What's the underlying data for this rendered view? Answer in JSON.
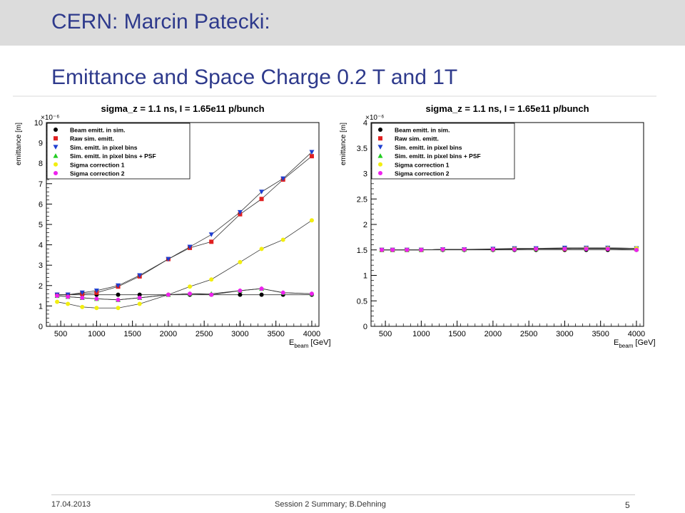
{
  "slide": {
    "title": "CERN: Marcin Patecki:",
    "subtitle": "Emittance and Space Charge 0.2 T and 1T",
    "footer_date": "17.04.2013",
    "footer_center": "Session 2 Summary; B.Dehning",
    "page_number": "5"
  },
  "chart_data": [
    {
      "type": "scatter",
      "title": "sigma_z = 1.1 ns, I = 1.65e11 p/bunch",
      "ylabel": "emittance [m]",
      "xlabel_main": "E",
      "xlabel_sub": "beam",
      "xlabel_unit": "[GeV]",
      "y_exponent": "×10⁻⁶",
      "xlim": [
        300,
        4100
      ],
      "ylim": [
        0,
        10
      ],
      "xticks": [
        500,
        1000,
        1500,
        2000,
        2500,
        3000,
        3500,
        4000
      ],
      "yticks": [
        0,
        1,
        2,
        3,
        4,
        5,
        6,
        7,
        8,
        9,
        10
      ],
      "ytick_labels": [
        "0",
        "1",
        "2",
        "3",
        "4",
        "5",
        "6",
        "7",
        "8",
        "9",
        "10"
      ],
      "x": [
        450,
        600,
        800,
        1000,
        1300,
        1600,
        2000,
        2300,
        2600,
        3000,
        3300,
        3600,
        4000
      ],
      "legend_position": "top-left",
      "series": [
        {
          "name": "Beam emitt. in sim.",
          "color": "#000000",
          "marker": "circle",
          "values": [
            1.55,
            1.55,
            1.55,
            1.55,
            1.55,
            1.55,
            1.55,
            1.55,
            1.55,
            1.55,
            1.55,
            1.55,
            1.55
          ]
        },
        {
          "name": "Raw sim. emitt.",
          "color": "#e02020",
          "marker": "square",
          "values": [
            1.55,
            1.55,
            1.6,
            1.65,
            1.95,
            2.45,
            3.3,
            3.85,
            4.15,
            5.5,
            6.25,
            7.2,
            8.35
          ]
        },
        {
          "name": "Sim. emitt. in pixel bins",
          "color": "#1f3fd0",
          "marker": "triangle-down",
          "values": [
            1.55,
            1.55,
            1.65,
            1.75,
            2.0,
            2.5,
            3.3,
            3.9,
            4.5,
            5.6,
            6.6,
            7.25,
            8.55
          ]
        },
        {
          "name": "Sim. emitt. in pixel bins + PSF",
          "color": "#22cc22",
          "marker": "triangle-up",
          "values": [
            1.5,
            1.45,
            1.4,
            1.35,
            1.3,
            1.4,
            1.55,
            1.6,
            1.6,
            1.75,
            1.85,
            1.65,
            1.6
          ]
        },
        {
          "name": "Sigma correction 1",
          "color": "#f2ee10",
          "marker": "circle",
          "values": [
            1.2,
            1.1,
            0.95,
            0.9,
            0.9,
            1.1,
            1.55,
            1.95,
            2.3,
            3.15,
            3.8,
            4.25,
            5.2
          ]
        },
        {
          "name": "Sigma correction 2",
          "color": "#ee22ee",
          "marker": "circle",
          "values": [
            1.5,
            1.45,
            1.4,
            1.35,
            1.3,
            1.4,
            1.55,
            1.6,
            1.55,
            1.75,
            1.85,
            1.65,
            1.6
          ]
        }
      ]
    },
    {
      "type": "scatter",
      "title": "sigma_z = 1.1 ns, I = 1.65e11 p/bunch",
      "ylabel": "emittance [m]",
      "xlabel_main": "E",
      "xlabel_sub": "beam",
      "xlabel_unit": "[GeV]",
      "y_exponent": "×10⁻⁶",
      "xlim": [
        300,
        4100
      ],
      "ylim": [
        0,
        4
      ],
      "xticks": [
        500,
        1000,
        1500,
        2000,
        2500,
        3000,
        3500,
        4000
      ],
      "yticks": [
        0,
        0.5,
        1,
        1.5,
        2,
        2.5,
        3,
        3.5,
        4
      ],
      "ytick_labels": [
        "0",
        "0.5",
        "1",
        "1.5",
        "2",
        "2.5",
        "3",
        "3.5",
        "4"
      ],
      "x": [
        450,
        600,
        800,
        1000,
        1300,
        1600,
        2000,
        2300,
        2600,
        3000,
        3300,
        3600,
        4000
      ],
      "legend_position": "top-left",
      "series": [
        {
          "name": "Beam emitt. in sim.",
          "color": "#000000",
          "marker": "circle",
          "values": [
            1.5,
            1.5,
            1.5,
            1.5,
            1.5,
            1.5,
            1.5,
            1.5,
            1.5,
            1.5,
            1.5,
            1.5,
            1.5
          ]
        },
        {
          "name": "Raw sim. emitt.",
          "color": "#e02020",
          "marker": "square",
          "values": [
            1.5,
            1.5,
            1.5,
            1.5,
            1.51,
            1.51,
            1.51,
            1.52,
            1.52,
            1.52,
            1.53,
            1.53,
            1.52
          ]
        },
        {
          "name": "Sim. emitt. in pixel bins",
          "color": "#1f3fd0",
          "marker": "triangle-down",
          "values": [
            1.5,
            1.5,
            1.5,
            1.5,
            1.51,
            1.51,
            1.52,
            1.53,
            1.53,
            1.54,
            1.54,
            1.54,
            1.53
          ]
        },
        {
          "name": "Sim. emitt. in pixel bins + PSF",
          "color": "#22cc22",
          "marker": "triangle-up",
          "values": [
            1.5,
            1.5,
            1.5,
            1.5,
            1.51,
            1.51,
            1.51,
            1.52,
            1.52,
            1.53,
            1.53,
            1.54,
            1.53
          ]
        },
        {
          "name": "Sigma correction 1",
          "color": "#f2ee10",
          "marker": "circle",
          "values": [
            1.5,
            1.5,
            1.5,
            1.5,
            1.51,
            1.51,
            1.51,
            1.52,
            1.52,
            1.52,
            1.53,
            1.53,
            1.53
          ]
        },
        {
          "name": "Sigma correction 2",
          "color": "#ee22ee",
          "marker": "circle",
          "values": [
            1.5,
            1.5,
            1.5,
            1.5,
            1.51,
            1.51,
            1.51,
            1.51,
            1.52,
            1.52,
            1.52,
            1.52,
            1.5
          ]
        }
      ]
    }
  ]
}
